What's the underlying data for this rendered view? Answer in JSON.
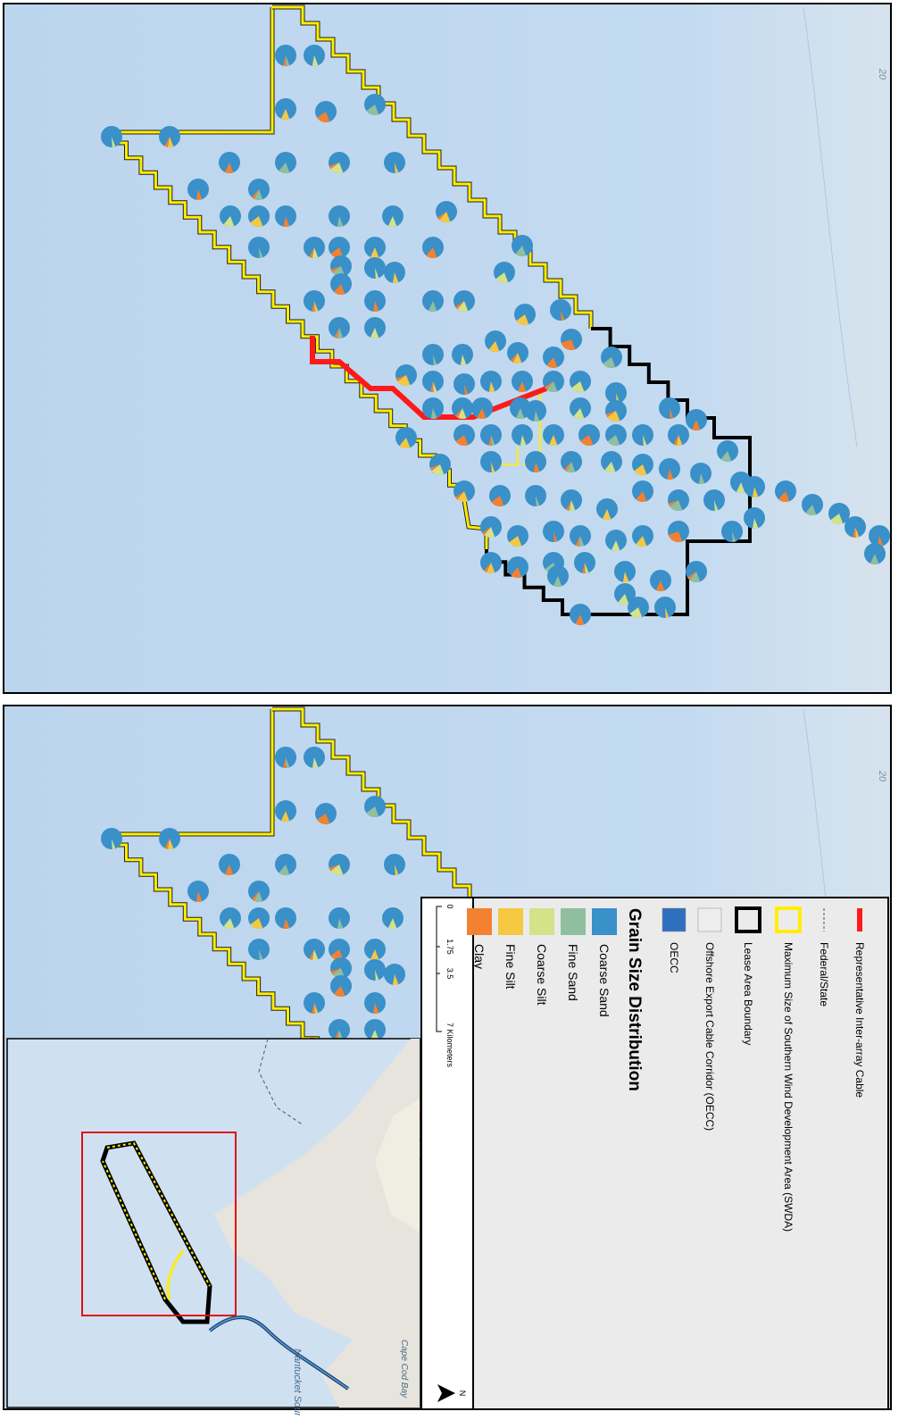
{
  "map": {
    "panels": [
      {
        "depth_label": "20"
      },
      {
        "depth_label": "20"
      }
    ]
  },
  "legend": {
    "items": [
      {
        "label": "Representative Inter-array Cable",
        "kind": "line",
        "color": "#ff1a1a"
      },
      {
        "label": "Federal/State",
        "kind": "dash",
        "color": "#888888"
      },
      {
        "label": "Maximum Size of Southern Wind Development Area (SWDA)",
        "kind": "outline",
        "color": "#ffee00"
      },
      {
        "label": "Lease Area Boundary",
        "kind": "outline",
        "color": "#000000"
      },
      {
        "label": "Offshore Export Cable Corridor (OECC)",
        "kind": "fill",
        "color": "#eeeeee"
      },
      {
        "label": "OECC",
        "kind": "fill",
        "color": "#2f6fc0"
      }
    ],
    "grain_size_title": "Grain Size Distribution",
    "grain_size": [
      {
        "label": "Coarse Sand",
        "color": "#3a90c8"
      },
      {
        "label": "Fine Sand",
        "color": "#8fbf9f"
      },
      {
        "label": "Coarse Silt",
        "color": "#d4e28a"
      },
      {
        "label": "Fine Silt",
        "color": "#f5c842"
      },
      {
        "label": "Clay",
        "color": "#f4812f"
      }
    ],
    "scale_bar": [
      "0",
      "1.75",
      "3.5",
      "7 Kilometers"
    ],
    "north": "N"
  },
  "inset": {
    "labels": [
      "Cape Cod Bay",
      "Nantucket Sound"
    ]
  }
}
